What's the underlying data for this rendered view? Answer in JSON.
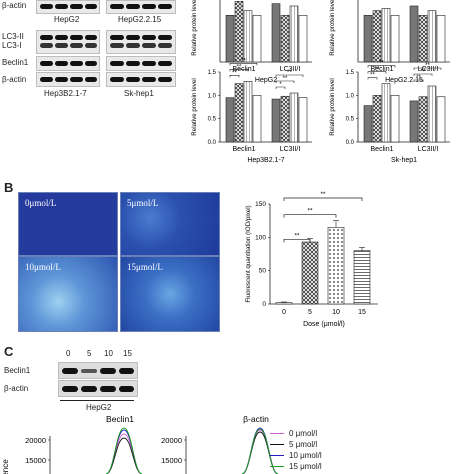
{
  "panel_a": {
    "blot_labels": {
      "beta_actin_top": "β-actin",
      "lc3_ii": "LC3-II",
      "lc3_i": "LC3-I",
      "beclin1": "Beclin1",
      "beta_actin": "β-actin"
    },
    "cell_lines": {
      "hepg2": "HepG2",
      "hepg2215": "HepG2.2.15",
      "hep3b": "Hep3B2.1-7",
      "skhep1": "Sk-hep1"
    }
  },
  "panel_b": {
    "letter": "B",
    "micro_labels": [
      "0μmol/L",
      "5μmol/L",
      "10μmol/L",
      "15μmol/L"
    ]
  },
  "panel_c": {
    "letter": "C",
    "doses": [
      "0",
      "5",
      "10",
      "15"
    ],
    "rows": [
      "Beclin1",
      "β-actin"
    ],
    "cell_line": "HepG2",
    "profile_titles": [
      "Beclin1",
      "β-actin"
    ],
    "y_ticks": [
      "20000",
      "15000"
    ],
    "ylabel_partial": "scence",
    "legend": [
      {
        "label": "0 μmol/l",
        "color": "#d05fd0"
      },
      {
        "label": "5 μmol/l",
        "color": "#111111"
      },
      {
        "label": "10 μmol/l",
        "color": "#2020c0"
      },
      {
        "label": "15 μmol/l",
        "color": "#20a020"
      }
    ]
  },
  "chart_data": [
    {
      "type": "bar",
      "title": "HepG2",
      "ylabel": "Relative protein level",
      "categories": [
        "Beclin1",
        "LC3II/I"
      ],
      "series": [
        {
          "values": [
            1.0,
            1.25
          ]
        },
        {
          "values": [
            1.3,
            1.0
          ]
        },
        {
          "values": [
            1.1,
            1.2
          ]
        },
        {
          "values": [
            1.0,
            1.0
          ]
        }
      ]
    },
    {
      "type": "bar",
      "title": "HepG2.2.15",
      "ylabel": "Relative protein level",
      "categories": [
        "Beclin1",
        "LC3II/I"
      ],
      "series": [
        {
          "values": [
            1.0,
            1.2
          ]
        },
        {
          "values": [
            1.1,
            1.0
          ]
        },
        {
          "values": [
            1.15,
            1.1
          ]
        },
        {
          "values": [
            1.0,
            1.0
          ]
        }
      ]
    },
    {
      "type": "bar",
      "title": "Hep3B2.1-7",
      "ylabel": "Relative protein level",
      "categories": [
        "Beclin1",
        "LC3II/I"
      ],
      "ylim": [
        0,
        1.5
      ],
      "yticks": [
        "0.0",
        "0.5",
        "1.0",
        "1.5"
      ],
      "series": [
        {
          "values": [
            0.95,
            0.92
          ]
        },
        {
          "values": [
            1.25,
            0.98
          ]
        },
        {
          "values": [
            1.3,
            1.05
          ]
        },
        {
          "values": [
            1.0,
            0.95
          ]
        }
      ],
      "sig_labels": [
        "**",
        "**",
        "**",
        "*",
        "**",
        "**"
      ]
    },
    {
      "type": "bar",
      "title": "Sk-hep1",
      "ylabel": "Relative protein level",
      "categories": [
        "Beclin1",
        "LC3II/I"
      ],
      "ylim": [
        0,
        1.5
      ],
      "yticks": [
        "0.0",
        "0.5",
        "1.0",
        "1.5"
      ],
      "series": [
        {
          "values": [
            0.78,
            0.88
          ]
        },
        {
          "values": [
            1.0,
            0.97
          ]
        },
        {
          "values": [
            1.25,
            1.2
          ]
        },
        {
          "values": [
            1.0,
            0.97
          ]
        }
      ],
      "sig_labels": [
        "**",
        "**",
        "**",
        "**",
        "**",
        "**"
      ]
    },
    {
      "type": "bar",
      "ylabel": "Fluorescent quantitation (IOD/pixel)",
      "xlabel": "Dose (μmol/l)",
      "categories": [
        "0",
        "5",
        "10",
        "15"
      ],
      "values": [
        2,
        93,
        115,
        80
      ],
      "errors": [
        1,
        5,
        10,
        5
      ],
      "ylim": [
        0,
        150
      ],
      "yticks": [
        "0",
        "50",
        "100",
        "150"
      ],
      "sig_labels": [
        "**",
        "**",
        "**"
      ]
    },
    {
      "type": "line",
      "title": "Beclin1",
      "yticks": [
        "20000",
        "15000"
      ]
    },
    {
      "type": "line",
      "title": "β-actin",
      "yticks": [
        "20000",
        "15000"
      ]
    }
  ]
}
